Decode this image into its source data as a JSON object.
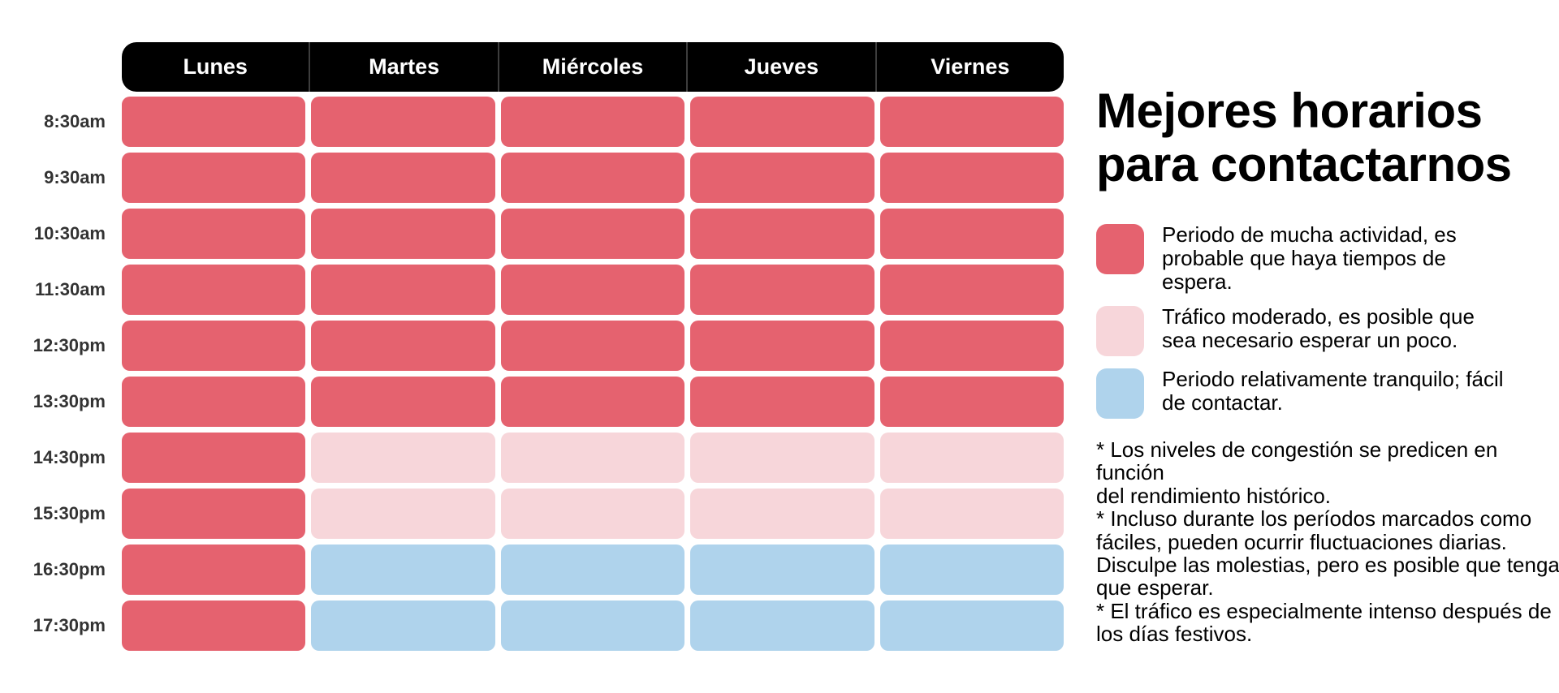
{
  "title": "Mejores horarios\npara contactarnos",
  "colors": {
    "busy": "#E5626F",
    "moderate": "#F7D6DA",
    "quiet": "#AFD3EC",
    "header_bg": "#000000",
    "header_divider": "#3d3d3d",
    "time_label": "#333333"
  },
  "chart_data": {
    "type": "heatmap",
    "columns": [
      "Lunes",
      "Martes",
      "Miércoles",
      "Jueves",
      "Viernes"
    ],
    "rows": [
      "8:30am",
      "9:30am",
      "10:30am",
      "11:30am",
      "12:30pm",
      "13:30pm",
      "14:30pm",
      "15:30pm",
      "16:30pm",
      "17:30pm"
    ],
    "levels": {
      "busy": "Periodo de mucha actividad, es probable que haya tiempos de espera.",
      "moderate": "Tráfico moderado, es posible que sea necesario esperar un poco.",
      "quiet": "Periodo relativamente tranquilo; fácil de contactar."
    },
    "cells": [
      [
        "busy",
        "busy",
        "busy",
        "busy",
        "busy"
      ],
      [
        "busy",
        "busy",
        "busy",
        "busy",
        "busy"
      ],
      [
        "busy",
        "busy",
        "busy",
        "busy",
        "busy"
      ],
      [
        "busy",
        "busy",
        "busy",
        "busy",
        "busy"
      ],
      [
        "busy",
        "busy",
        "busy",
        "busy",
        "busy"
      ],
      [
        "busy",
        "busy",
        "busy",
        "busy",
        "busy"
      ],
      [
        "busy",
        "moderate",
        "moderate",
        "moderate",
        "moderate"
      ],
      [
        "busy",
        "moderate",
        "moderate",
        "moderate",
        "moderate"
      ],
      [
        "busy",
        "quiet",
        "quiet",
        "quiet",
        "quiet"
      ],
      [
        "busy",
        "quiet",
        "quiet",
        "quiet",
        "quiet"
      ]
    ],
    "legend_position": "right",
    "grid": false
  },
  "legend": [
    {
      "level": "busy",
      "color": "#E5626F",
      "label": "Periodo de mucha actividad, es\nprobable que haya tiempos de\nespera."
    },
    {
      "level": "moderate",
      "color": "#F7D6DA",
      "label": "Tráfico moderado, es posible que\nsea necesario esperar un poco."
    },
    {
      "level": "quiet",
      "color": "#AFD3EC",
      "label": "Periodo relativamente tranquilo; fácil\nde contactar."
    }
  ],
  "footnotes": [
    "* Los niveles de congestión se predicen en función\ndel rendimiento histórico.",
    "* Incluso durante los períodos marcados como\nfáciles, pueden ocurrir fluctuaciones diarias.\nDisculpe las molestias, pero es posible que tenga\nque esperar.",
    "* El tráfico es especialmente intenso después de\nlos días festivos."
  ]
}
